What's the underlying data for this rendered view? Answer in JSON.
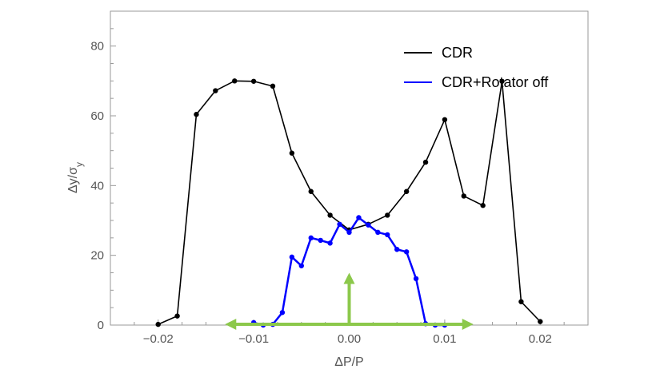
{
  "chart_data": {
    "type": "line",
    "xlabel": "ΔP/P",
    "ylabel": "Δy/σ",
    "ylabel_subscript": "y",
    "xlim": [
      -0.025,
      0.025
    ],
    "ylim": [
      0,
      90
    ],
    "xticks": [
      -0.02,
      -0.01,
      0.0,
      0.01,
      0.02
    ],
    "xtick_labels": [
      "−0.02",
      "−0.01",
      "0.00",
      "0.01",
      "0.02"
    ],
    "yticks": [
      0,
      20,
      40,
      60,
      80
    ],
    "ytick_labels": [
      "0",
      "20",
      "40",
      "60",
      "80"
    ],
    "grid": false,
    "legend_position": "top-right",
    "series": [
      {
        "name": "CDR",
        "color": "#000000",
        "x": [
          -0.02,
          -0.018,
          -0.016,
          -0.014,
          -0.012,
          -0.01,
          -0.008,
          -0.006,
          -0.004,
          -0.002,
          0.0,
          0.002,
          0.004,
          0.006,
          0.008,
          0.01,
          0.012,
          0.014,
          0.016,
          0.018,
          0.02
        ],
        "y": [
          0.2,
          2.6,
          60.4,
          67.2,
          70.0,
          69.9,
          68.5,
          49.3,
          38.3,
          31.5,
          27.3,
          28.9,
          31.5,
          38.3,
          46.7,
          58.9,
          37.0,
          34.3,
          69.9,
          6.7,
          1.0
        ]
      },
      {
        "name": "CDR+Rotator off",
        "color": "#0000ff",
        "x": [
          -0.01,
          -0.009,
          -0.008,
          -0.007,
          -0.006,
          -0.005,
          -0.004,
          -0.003,
          -0.002,
          -0.001,
          0.0,
          0.001,
          0.002,
          0.003,
          0.004,
          0.005,
          0.006,
          0.007,
          0.008,
          0.009,
          0.01
        ],
        "y": [
          0.7,
          0.0,
          0.2,
          3.6,
          19.5,
          17.0,
          25.0,
          24.3,
          23.5,
          28.9,
          26.6,
          30.8,
          28.7,
          26.6,
          25.9,
          21.7,
          21.0,
          13.3,
          0.4,
          0.0,
          0.0
        ]
      }
    ],
    "annotations": {
      "arrow_color": "#8cc84b",
      "horizontal_double_arrow_x": [
        -0.013,
        0.013
      ],
      "vertical_arrow": {
        "x": 0.0,
        "y_from": 0,
        "y_to": 15
      }
    }
  }
}
